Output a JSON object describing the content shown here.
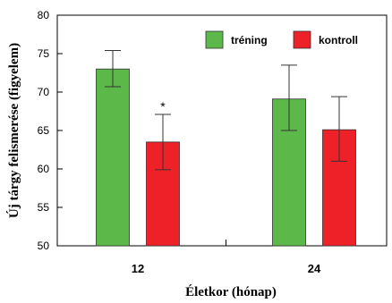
{
  "chart_data": {
    "type": "bar",
    "title": "",
    "xlabel": "Életkor (hónap)",
    "ylabel": "Új tárgy felismerése (figyelem)",
    "categories": [
      "12",
      "24"
    ],
    "ylim": [
      50,
      80
    ],
    "yticks": [
      50,
      55,
      60,
      65,
      70,
      75,
      80
    ],
    "series": [
      {
        "name": "tréning",
        "color": "#5cb848",
        "values": [
          73.0,
          69.1
        ],
        "err_upper": [
          75.4,
          73.5
        ],
        "err_lower": [
          70.7,
          65.0
        ]
      },
      {
        "name": "kontroll",
        "color": "#ee2128",
        "values": [
          63.5,
          65.1
        ],
        "err_upper": [
          67.1,
          69.4
        ],
        "err_lower": [
          59.9,
          61.0
        ]
      }
    ],
    "annotations": [
      {
        "text": "*",
        "category": "12",
        "series": "kontroll"
      }
    ],
    "legend_position": "top-right",
    "grid": false
  }
}
